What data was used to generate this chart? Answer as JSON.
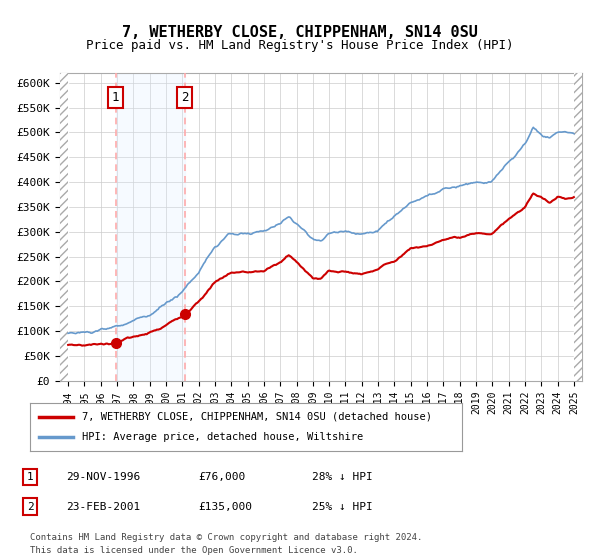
{
  "title": "7, WETHERBY CLOSE, CHIPPENHAM, SN14 0SU",
  "subtitle": "Price paid vs. HM Land Registry's House Price Index (HPI)",
  "legend_line1": "7, WETHERBY CLOSE, CHIPPENHAM, SN14 0SU (detached house)",
  "legend_line2": "HPI: Average price, detached house, Wiltshire",
  "table_rows": [
    {
      "num": "1",
      "date": "29-NOV-1996",
      "price": "£76,000",
      "pct": "28% ↓ HPI"
    },
    {
      "num": "2",
      "date": "23-FEB-2001",
      "price": "£135,000",
      "pct": "25% ↓ HPI"
    }
  ],
  "footnote1": "Contains HM Land Registry data © Crown copyright and database right 2024.",
  "footnote2": "This data is licensed under the Open Government Licence v3.0.",
  "sale1_year": 1996.91,
  "sale1_price": 76000,
  "sale2_year": 2001.14,
  "sale2_price": 135000,
  "hpi_color": "#6699cc",
  "price_color": "#cc0000",
  "shade_color": "#ddeeff",
  "vline_color": "#ffaaaa",
  "bg_color": "#ffffff",
  "grid_color": "#cccccc",
  "ylim": [
    0,
    620000
  ],
  "xlim_start": 1993.5,
  "xlim_end": 2025.5
}
